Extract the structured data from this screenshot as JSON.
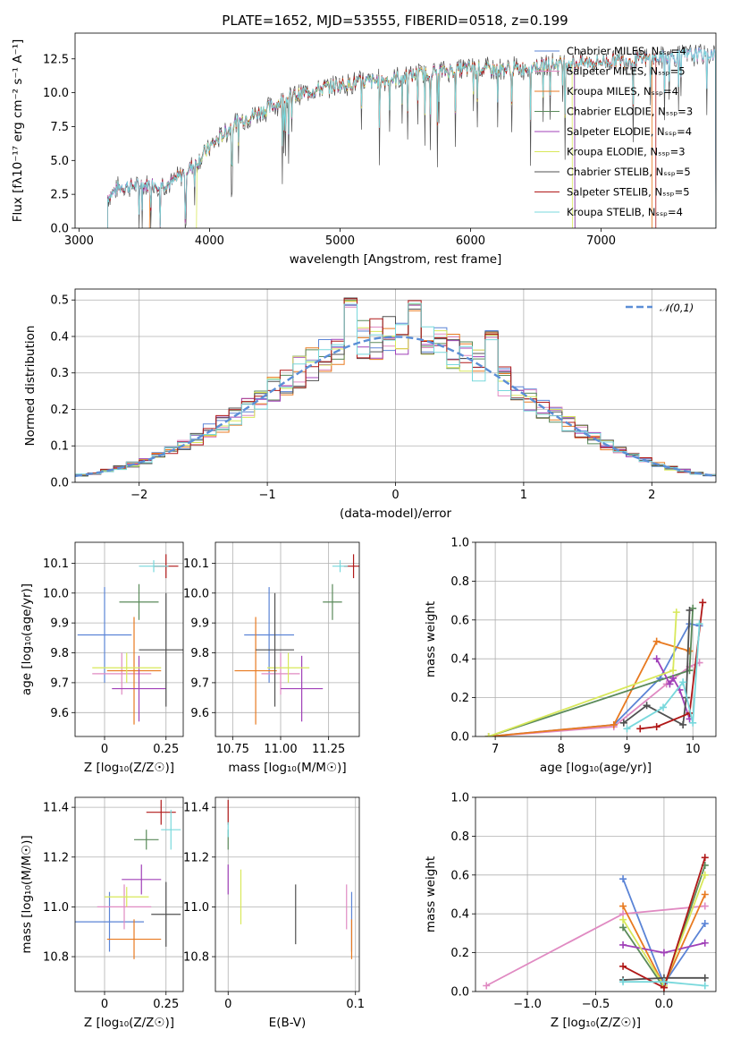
{
  "figure": {
    "title": "PLATE=1652, MJD=53555, FIBERID=0518, z=0.199"
  },
  "chart_data": [
    {
      "id": "spectrum",
      "type": "line",
      "xlabel": "wavelength [Angstrom, rest frame]",
      "ylabel": "Flux [f_λ 10^-17 erg cm^-2 s^-1 A^-1]",
      "xlim": [
        2970,
        7880
      ],
      "ylim": [
        0,
        14.4
      ],
      "xticks": [
        3000,
        4000,
        5000,
        6000,
        7000
      ],
      "yticks": [
        0.0,
        2.5,
        5.0,
        7.5,
        10.0,
        12.5
      ],
      "legend_position": "top-right",
      "series": [
        {
          "name": "Chabrier MILES, N_SSP=4",
          "color": "#5b84d6",
          "x_start": 3220,
          "x_end": 7880
        },
        {
          "name": "Salpeter MILES, N_SSP=5",
          "color": "#e08ac2",
          "x_start": 3220,
          "x_end": 7880
        },
        {
          "name": "Kroupa MILES, N_SSP=4",
          "color": "#e87a20",
          "x_start": 3540,
          "x_end": 7390
        },
        {
          "name": "Chabrier ELODIE, N_SSP=3",
          "color": "#5a8a5a",
          "x_start": 3220,
          "x_end": 6800
        },
        {
          "name": "Salpeter ELODIE, N_SSP=4",
          "color": "#a040b8",
          "x_start": 3220,
          "x_end": 6800
        },
        {
          "name": "Kroupa ELODIE, N_SSP=3",
          "color": "#d8e85a",
          "x_start": 3900,
          "x_end": 6780
        },
        {
          "name": "Chabrier STELIB, N_SSP=5",
          "color": "#505050",
          "x_start": 3220,
          "x_end": 7880
        },
        {
          "name": "Salpeter STELIB, N_SSP=5",
          "color": "#b01818",
          "x_start": 3220,
          "x_end": 7420
        },
        {
          "name": "Kroupa STELIB, N_SSP=4",
          "color": "#78d8dc",
          "x_start": 3220,
          "x_end": 7880
        }
      ],
      "continuum": {
        "x": [
          3220,
          3300,
          3500,
          3700,
          3900,
          4000,
          4200,
          4400,
          4600,
          4800,
          5000,
          5200,
          5400,
          5600,
          5800,
          6000,
          6200,
          6400,
          6600,
          6800,
          7000,
          7200,
          7400,
          7600,
          7880
        ],
        "y": [
          2.3,
          3.0,
          3.2,
          3.3,
          4.8,
          6.0,
          7.8,
          8.6,
          9.6,
          10.2,
          10.6,
          10.8,
          11.0,
          11.4,
          11.6,
          11.8,
          11.7,
          11.8,
          12.1,
          12.2,
          12.3,
          12.4,
          12.5,
          12.7,
          12.9
        ]
      }
    },
    {
      "id": "residuals",
      "type": "histogram",
      "xlabel": "(data-model)/error",
      "ylabel": "Normed distribution",
      "xlim": [
        -2.5,
        2.5
      ],
      "ylim": [
        0,
        0.53
      ],
      "xticks": [
        -2,
        -1,
        0,
        1,
        2
      ],
      "xtick_labels": [
        "−2",
        "−1",
        "0",
        "1",
        "2"
      ],
      "yticks": [
        0.0,
        0.1,
        0.2,
        0.3,
        0.4,
        0.5
      ],
      "bin_width": 0.1,
      "legend": "𝒩(0,1)",
      "normal_curve_color": "#5b8ed6",
      "series_colors": [
        "#5b84d6",
        "#e08ac2",
        "#e87a20",
        "#5a8a5a",
        "#a040b8",
        "#d8e85a",
        "#505050",
        "#b01818",
        "#78d8dc"
      ]
    },
    {
      "id": "age-vs-Z",
      "type": "errorbar",
      "xlabel": "Z [log10(Z/Z☉)]",
      "ylabel": "age [log10(age/yr)]",
      "xlim": [
        -0.12,
        0.32
      ],
      "ylim": [
        9.52,
        10.17
      ],
      "xticks": [
        0.0,
        0.25
      ],
      "yticks": [
        9.6,
        9.7,
        9.8,
        9.9,
        10.0,
        10.1
      ],
      "points": [
        {
          "x": 0.0,
          "y": 9.86,
          "xerr": 0.11,
          "yerr": 0.16,
          "color": "#5b84d6"
        },
        {
          "x": 0.07,
          "y": 9.73,
          "xerr": 0.12,
          "yerr": 0.07,
          "color": "#e08ac2"
        },
        {
          "x": 0.12,
          "y": 9.74,
          "xerr": 0.11,
          "yerr": 0.18,
          "color": "#e87a20"
        },
        {
          "x": 0.14,
          "y": 9.97,
          "xerr": 0.08,
          "yerr": 0.06,
          "color": "#5a8a5a"
        },
        {
          "x": 0.14,
          "y": 9.68,
          "xerr": 0.11,
          "yerr": 0.11,
          "color": "#a040b8"
        },
        {
          "x": 0.09,
          "y": 9.75,
          "xerr": 0.14,
          "yerr": 0.05,
          "color": "#d8e85a"
        },
        {
          "x": 0.25,
          "y": 9.81,
          "xerr": 0.11,
          "yerr": 0.19,
          "color": "#505050"
        },
        {
          "x": 0.25,
          "y": 10.09,
          "xerr": 0.05,
          "yerr": 0.04,
          "color": "#b01818"
        },
        {
          "x": 0.2,
          "y": 10.09,
          "xerr": 0.06,
          "yerr": 0.02,
          "color": "#78d8dc"
        }
      ]
    },
    {
      "id": "age-vs-mass",
      "type": "errorbar",
      "xlabel": "mass [log10(M/M☉)]",
      "ylabel": "",
      "xlim": [
        10.66,
        11.41
      ],
      "ylim": [
        9.52,
        10.17
      ],
      "xticks": [
        10.75,
        11.0,
        11.25
      ],
      "xtick_labels": [
        "10.75",
        "11.00",
        "11.25"
      ],
      "yticks": [
        9.6,
        9.7,
        9.8,
        9.9,
        10.0,
        10.1
      ],
      "points": [
        {
          "x": 10.94,
          "y": 9.86,
          "xerr": 0.13,
          "yerr": 0.16,
          "color": "#5b84d6"
        },
        {
          "x": 11.0,
          "y": 9.73,
          "xerr": 0.1,
          "yerr": 0.07,
          "color": "#e08ac2"
        },
        {
          "x": 10.87,
          "y": 9.74,
          "xerr": 0.11,
          "yerr": 0.18,
          "color": "#e87a20"
        },
        {
          "x": 11.27,
          "y": 9.97,
          "xerr": 0.05,
          "yerr": 0.06,
          "color": "#5a8a5a"
        },
        {
          "x": 11.11,
          "y": 9.68,
          "xerr": 0.11,
          "yerr": 0.11,
          "color": "#a040b8"
        },
        {
          "x": 11.04,
          "y": 9.75,
          "xerr": 0.11,
          "yerr": 0.05,
          "color": "#d8e85a"
        },
        {
          "x": 10.97,
          "y": 9.81,
          "xerr": 0.1,
          "yerr": 0.19,
          "color": "#505050"
        },
        {
          "x": 11.38,
          "y": 10.09,
          "xerr": 0.05,
          "yerr": 0.04,
          "color": "#b01818"
        },
        {
          "x": 11.31,
          "y": 10.09,
          "xerr": 0.04,
          "yerr": 0.02,
          "color": "#78d8dc"
        }
      ]
    },
    {
      "id": "massweight-vs-age",
      "type": "line",
      "xlabel": "age [log10(age/yr)]",
      "ylabel": "mass weight",
      "xlim": [
        6.7,
        10.35
      ],
      "ylim": [
        0,
        1.0
      ],
      "xticks": [
        7,
        8,
        9,
        10
      ],
      "yticks": [
        0.0,
        0.2,
        0.4,
        0.6,
        0.8,
        1.0
      ],
      "series": [
        {
          "color": "#5b84d6",
          "x": [
            6.9,
            8.8,
            9.5,
            9.95,
            10.1
          ],
          "y": [
            0.0,
            0.06,
            0.3,
            0.58,
            0.57
          ]
        },
        {
          "color": "#e08ac2",
          "x": [
            6.9,
            8.8,
            9.6,
            9.95,
            10.1
          ],
          "y": [
            0.0,
            0.05,
            0.27,
            0.36,
            0.38
          ]
        },
        {
          "color": "#e87a20",
          "x": [
            6.9,
            8.8,
            9.45,
            9.95
          ],
          "y": [
            0.0,
            0.06,
            0.49,
            0.44
          ]
        },
        {
          "color": "#5a8a5a",
          "x": [
            6.9,
            9.95,
            10.0
          ],
          "y": [
            0.0,
            0.34,
            0.66
          ]
        },
        {
          "color": "#a040b8",
          "x": [
            9.45,
            9.65,
            9.7,
            9.8,
            9.95
          ],
          "y": [
            0.4,
            0.27,
            0.3,
            0.24,
            0.09
          ]
        },
        {
          "color": "#d8e85a",
          "x": [
            6.9,
            9.7,
            9.75
          ],
          "y": [
            0.0,
            0.34,
            0.64
          ]
        },
        {
          "color": "#505050",
          "x": [
            8.95,
            9.3,
            9.85,
            9.9,
            9.95
          ],
          "y": [
            0.07,
            0.16,
            0.06,
            0.2,
            0.65
          ]
        },
        {
          "color": "#b01818",
          "x": [
            9.2,
            9.45,
            9.95,
            10.15
          ],
          "y": [
            0.04,
            0.05,
            0.12,
            0.69
          ]
        },
        {
          "color": "#78d8dc",
          "x": [
            9.0,
            9.55,
            9.85,
            10.0,
            10.1
          ],
          "y": [
            0.04,
            0.15,
            0.28,
            0.07,
            0.58
          ]
        }
      ]
    },
    {
      "id": "mass-vs-Z",
      "type": "errorbar",
      "xlabel": "Z [log10(Z/Z☉)]",
      "ylabel": "mass [log10(M/M☉)]",
      "xlim": [
        -0.12,
        0.32
      ],
      "ylim": [
        10.66,
        11.44
      ],
      "xticks": [
        0.0,
        0.25
      ],
      "yticks": [
        10.8,
        11.0,
        11.2,
        11.4
      ],
      "points": [
        {
          "x": 0.02,
          "y": 10.94,
          "xerr": 0.14,
          "yerr": 0.12,
          "color": "#5b84d6"
        },
        {
          "x": 0.08,
          "y": 11.0,
          "xerr": 0.11,
          "yerr": 0.09,
          "color": "#e08ac2"
        },
        {
          "x": 0.12,
          "y": 10.87,
          "xerr": 0.11,
          "yerr": 0.08,
          "color": "#e87a20"
        },
        {
          "x": 0.17,
          "y": 11.27,
          "xerr": 0.05,
          "yerr": 0.04,
          "color": "#5a8a5a"
        },
        {
          "x": 0.15,
          "y": 11.11,
          "xerr": 0.08,
          "yerr": 0.06,
          "color": "#a040b8"
        },
        {
          "x": 0.09,
          "y": 11.04,
          "xerr": 0.09,
          "yerr": 0.04,
          "color": "#d8e85a"
        },
        {
          "x": 0.25,
          "y": 10.97,
          "xerr": 0.06,
          "yerr": 0.13,
          "color": "#505050"
        },
        {
          "x": 0.23,
          "y": 11.38,
          "xerr": 0.06,
          "yerr": 0.05,
          "color": "#b01818"
        },
        {
          "x": 0.27,
          "y": 11.31,
          "xerr": 0.04,
          "yerr": 0.08,
          "color": "#78d8dc"
        }
      ]
    },
    {
      "id": "mass-vs-ebv",
      "type": "errorbar",
      "xlabel": "E(B-V)",
      "ylabel": "",
      "xlim": [
        -0.01,
        0.103
      ],
      "ylim": [
        10.66,
        11.44
      ],
      "xticks": [
        0.0,
        0.1
      ],
      "yticks": [
        10.8,
        11.0,
        11.2,
        11.4
      ],
      "points": [
        {
          "x": 0.097,
          "y": 10.94,
          "xerr": 0.0,
          "yerr": 0.12,
          "color": "#5b84d6"
        },
        {
          "x": 0.093,
          "y": 11.0,
          "xerr": 0.0,
          "yerr": 0.09,
          "color": "#e08ac2"
        },
        {
          "x": 0.097,
          "y": 10.87,
          "xerr": 0.0,
          "yerr": 0.08,
          "color": "#e87a20"
        },
        {
          "x": 0.0,
          "y": 11.27,
          "xerr": 0.0,
          "yerr": 0.04,
          "color": "#5a8a5a"
        },
        {
          "x": 0.0,
          "y": 11.11,
          "xerr": 0.0,
          "yerr": 0.06,
          "color": "#a040b8"
        },
        {
          "x": 0.01,
          "y": 11.04,
          "xerr": 0.0,
          "yerr": 0.11,
          "color": "#d8e85a"
        },
        {
          "x": 0.053,
          "y": 10.97,
          "xerr": 0.0,
          "yerr": 0.12,
          "color": "#505050"
        },
        {
          "x": 0.0,
          "y": 11.38,
          "xerr": 0.0,
          "yerr": 0.05,
          "color": "#b01818"
        },
        {
          "x": 0.0,
          "y": 11.31,
          "xerr": 0.0,
          "yerr": 0.03,
          "color": "#78d8dc"
        }
      ]
    },
    {
      "id": "massweight-vs-Z",
      "type": "line",
      "xlabel": "Z [log10(Z/Z☉)]",
      "ylabel": "mass weight",
      "xlim": [
        -1.38,
        0.38
      ],
      "ylim": [
        0,
        1.0
      ],
      "xticks": [
        -1.0,
        -0.5,
        0.0
      ],
      "xtick_labels": [
        "−1.0",
        "−0.5",
        "0.0"
      ],
      "yticks": [
        0.0,
        0.2,
        0.4,
        0.6,
        0.8,
        1.0
      ],
      "series": [
        {
          "color": "#5b84d6",
          "x": [
            -0.3,
            0.0,
            0.3
          ],
          "y": [
            0.58,
            0.04,
            0.35
          ]
        },
        {
          "color": "#e08ac2",
          "x": [
            -1.3,
            -0.3,
            0.3
          ],
          "y": [
            0.03,
            0.4,
            0.44
          ]
        },
        {
          "color": "#e87a20",
          "x": [
            -0.3,
            0.0,
            0.3
          ],
          "y": [
            0.44,
            0.03,
            0.5
          ]
        },
        {
          "color": "#5a8a5a",
          "x": [
            -0.3,
            0.0,
            0.3
          ],
          "y": [
            0.33,
            0.02,
            0.65
          ]
        },
        {
          "color": "#a040b8",
          "x": [
            -0.3,
            0.0,
            0.3
          ],
          "y": [
            0.24,
            0.2,
            0.25
          ]
        },
        {
          "color": "#d8e85a",
          "x": [
            -0.3,
            0.0,
            0.3
          ],
          "y": [
            0.37,
            0.03,
            0.6
          ]
        },
        {
          "color": "#505050",
          "x": [
            -0.3,
            0.0,
            0.3
          ],
          "y": [
            0.06,
            0.07,
            0.07
          ]
        },
        {
          "color": "#b01818",
          "x": [
            -0.3,
            0.0,
            0.3
          ],
          "y": [
            0.13,
            0.02,
            0.69
          ]
        },
        {
          "color": "#78d8dc",
          "x": [
            -0.3,
            0.0,
            0.3
          ],
          "y": [
            0.05,
            0.05,
            0.03
          ]
        }
      ]
    }
  ]
}
